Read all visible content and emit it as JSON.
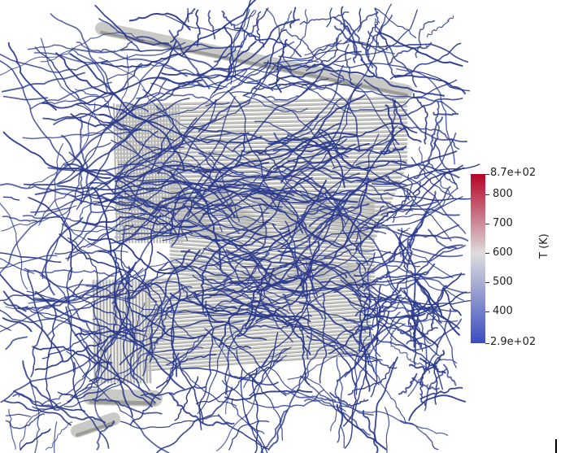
{
  "colorbar": {
    "title": "T (K)",
    "min_label": "2.9e+02",
    "max_label": "8.7e+02",
    "min": 290,
    "max": 870,
    "ticks": [
      {
        "value": 800,
        "label": "800"
      },
      {
        "value": 700,
        "label": "700"
      },
      {
        "value": 600,
        "label": "600"
      },
      {
        "value": 500,
        "label": "500"
      },
      {
        "value": 400,
        "label": "400"
      }
    ],
    "colors": {
      "low": "#3b4cc0",
      "mid": "#dddddd",
      "high": "#b40426"
    }
  },
  "scene": {
    "background": "#ffffff",
    "streamline_color": "#2b3a8c",
    "tube_color": "#c9c9c6"
  }
}
